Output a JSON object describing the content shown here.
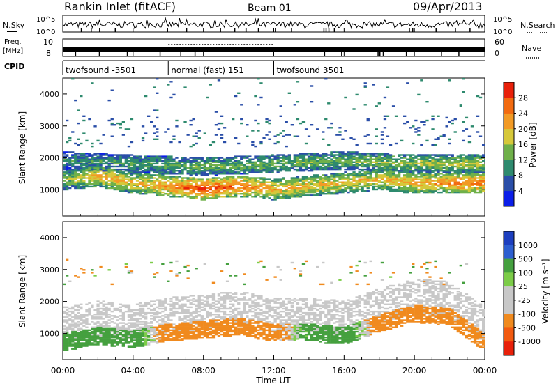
{
  "header": {
    "title": "Rankin Inlet (fitACF)",
    "beam": "Beam 01",
    "date": "09/Apr/2013"
  },
  "strip_labels": {
    "nsky": "N.Sky",
    "nsearch": "N.Search",
    "freq_top": "Freq.",
    "freq_unit": "[MHz]",
    "nave": "Nave",
    "cpid": "CPID"
  },
  "strip_ticks": {
    "nsky_left": [
      "10^5",
      "10^0"
    ],
    "nsky_right": [
      "10^5",
      "10^0"
    ],
    "freq_left": [
      "10",
      "8"
    ],
    "nave_right": [
      "60",
      "0"
    ]
  },
  "cpid_segments": [
    {
      "label": "twofsound -3501",
      "start_hour": 0,
      "end_hour": 6
    },
    {
      "label": "normal (fast) 151",
      "start_hour": 6,
      "end_hour": 12
    },
    {
      "label": "twofsound 3501",
      "start_hour": 12,
      "end_hour": 24
    }
  ],
  "colors": {
    "power_scale": [
      "#0b1ee8",
      "#2a4ea8",
      "#2e8a6e",
      "#6fb04a",
      "#d6c83a",
      "#f29a25",
      "#f26a10",
      "#e8200a"
    ],
    "velocity_scale": [
      "#1d3fbf",
      "#2d5fd0",
      "#45a03f",
      "#7ccc48",
      "#c8c8c8",
      "#c8c8c8",
      "#f08a1e",
      "#f25a10",
      "#e8200a"
    ]
  },
  "chart_data": [
    {
      "type": "heatmap",
      "title": "Power",
      "xlabel": "",
      "ylabel": "Slant Range [km]",
      "x_ticks": [
        "00:00",
        "04:00",
        "08:00",
        "12:00",
        "16:00",
        "20:00",
        "00:00"
      ],
      "xlim_hours": [
        0,
        24
      ],
      "y_ticks": [
        1000,
        2000,
        3000,
        4000
      ],
      "ylim": [
        180,
        4500
      ],
      "colorbar": {
        "label": "Power [dB]",
        "ticks": [
          4,
          8,
          12,
          16,
          20,
          24,
          28
        ],
        "range": [
          0,
          32
        ]
      },
      "bands": [
        {
          "name": "main",
          "points": [
            [
              0,
              1300,
              14
            ],
            [
              2,
              1400,
              22
            ],
            [
              4,
              1200,
              20
            ],
            [
              6,
              1100,
              24
            ],
            [
              8,
              1000,
              30
            ],
            [
              10,
              1100,
              26
            ],
            [
              12,
              1000,
              22
            ],
            [
              14,
              1100,
              20
            ],
            [
              16,
              1200,
              20
            ],
            [
              18,
              1300,
              20
            ],
            [
              20,
              1200,
              22
            ],
            [
              22,
              1200,
              24
            ],
            [
              24,
              1200,
              26
            ]
          ]
        },
        {
          "name": "upper",
          "points": [
            [
              0,
              1900,
              10
            ],
            [
              4,
              1800,
              12
            ],
            [
              8,
              1700,
              14
            ],
            [
              12,
              1800,
              14
            ],
            [
              16,
              1900,
              14
            ],
            [
              20,
              1800,
              16
            ],
            [
              24,
              1800,
              18
            ]
          ]
        }
      ]
    },
    {
      "type": "heatmap",
      "title": "Velocity",
      "xlabel": "Time UT",
      "ylabel": "Slant Range [km]",
      "x_ticks": [
        "00:00",
        "04:00",
        "08:00",
        "12:00",
        "16:00",
        "20:00",
        "00:00"
      ],
      "xlim_hours": [
        0,
        24
      ],
      "y_ticks": [
        1000,
        2000,
        3000,
        4000
      ],
      "ylim": [
        180,
        4500
      ],
      "colorbar": {
        "label": "Velocity [m s⁻¹]",
        "ticks": [
          "1000",
          "500",
          "100",
          "25",
          "-25",
          "-100",
          "-500",
          "-1000"
        ]
      },
      "bands": [
        {
          "name": "main",
          "points": [
            [
              0,
              700,
              100
            ],
            [
              2,
              900,
              200
            ],
            [
              4,
              800,
              150
            ],
            [
              6,
              1000,
              -100
            ],
            [
              8,
              1100,
              -150
            ],
            [
              10,
              1200,
              -150
            ],
            [
              12,
              1000,
              -100
            ],
            [
              14,
              1000,
              100
            ],
            [
              16,
              900,
              150
            ],
            [
              18,
              1300,
              -100
            ],
            [
              20,
              1600,
              -120
            ],
            [
              22,
              1500,
              -100
            ],
            [
              24,
              700,
              -150
            ]
          ]
        }
      ]
    }
  ]
}
